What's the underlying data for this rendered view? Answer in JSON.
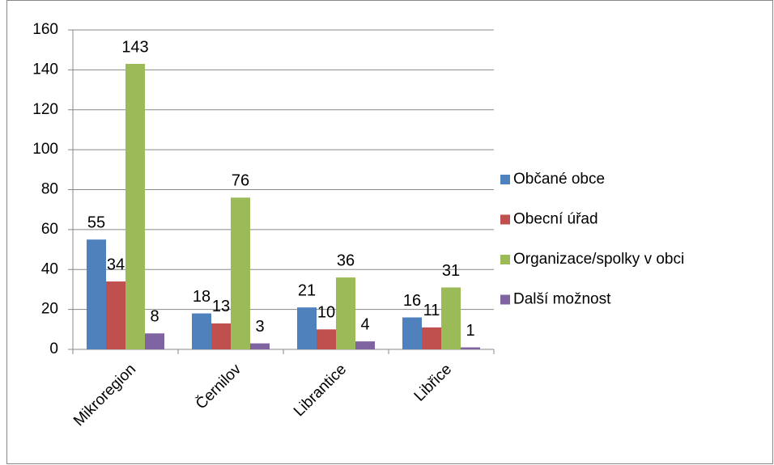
{
  "chart_data": {
    "type": "bar",
    "categories": [
      "Mikroregion",
      "Černilov",
      "Librantice",
      "Libřice"
    ],
    "series": [
      {
        "name": "Občané obce",
        "color": "#4f81bd",
        "values": [
          55,
          18,
          21,
          16
        ]
      },
      {
        "name": "Obecní úřad",
        "color": "#c0504d",
        "values": [
          34,
          13,
          10,
          11
        ]
      },
      {
        "name": "Organizace/spolky v obci",
        "color": "#9bbb59",
        "values": [
          143,
          76,
          36,
          31
        ]
      },
      {
        "name": "Další možnost",
        "color": "#8064a2",
        "values": [
          8,
          3,
          4,
          1
        ]
      }
    ],
    "ylim": [
      0,
      160
    ],
    "yticks": [
      0,
      20,
      40,
      60,
      80,
      100,
      120,
      140,
      160
    ],
    "grid": true,
    "legend": "right"
  }
}
